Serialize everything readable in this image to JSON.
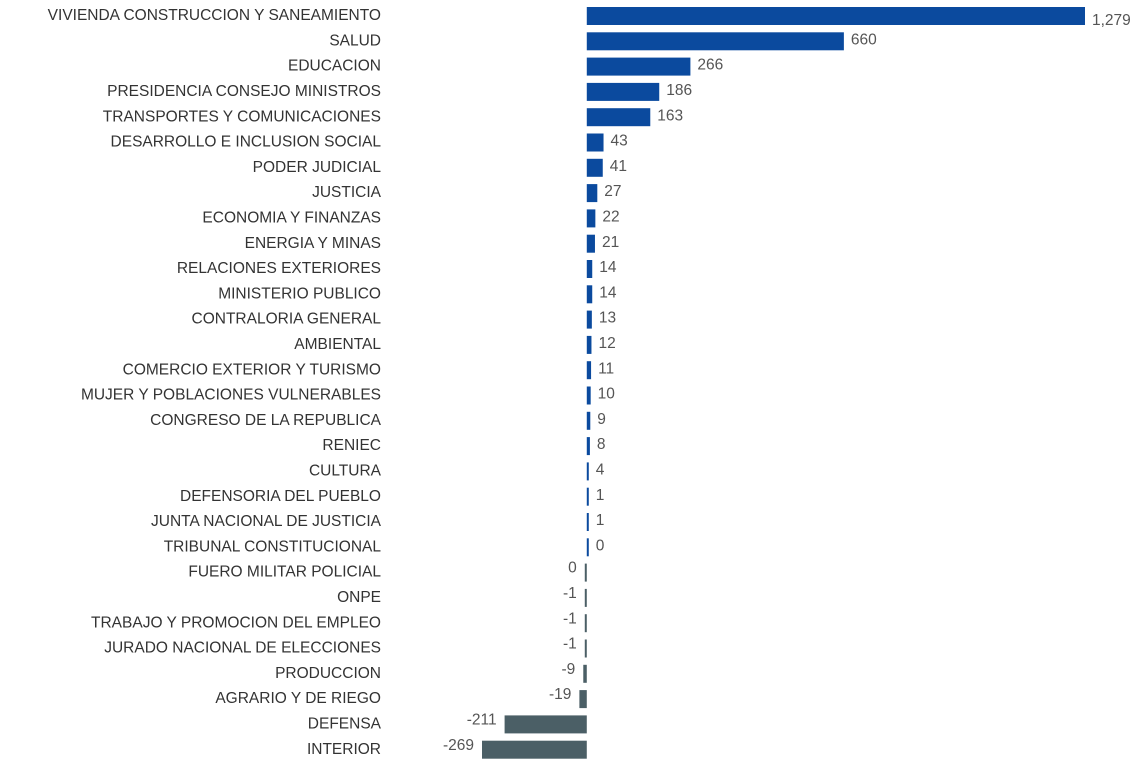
{
  "chart_data": {
    "type": "hbar",
    "categories": [
      "VIVIENDA CONSTRUCCION Y SANEAMIENTO",
      "SALUD",
      "EDUCACION",
      "PRESIDENCIA CONSEJO MINISTROS",
      "TRANSPORTES Y COMUNICACIONES",
      "DESARROLLO E INCLUSION SOCIAL",
      "PODER JUDICIAL",
      "JUSTICIA",
      "ECONOMIA Y FINANZAS",
      "ENERGIA Y MINAS",
      "RELACIONES EXTERIORES",
      "MINISTERIO PUBLICO",
      "CONTRALORIA GENERAL",
      "AMBIENTAL",
      "COMERCIO EXTERIOR Y TURISMO",
      "MUJER Y POBLACIONES VULNERABLES",
      "CONGRESO DE LA REPUBLICA",
      "RENIEC",
      "CULTURA",
      "DEFENSORIA DEL PUEBLO",
      "JUNTA NACIONAL DE JUSTICIA",
      "TRIBUNAL CONSTITUCIONAL",
      "FUERO MILITAR POLICIAL",
      "ONPE",
      "TRABAJO Y PROMOCION DEL EMPLEO",
      "JURADO NACIONAL DE ELECCIONES",
      "PRODUCCION",
      "AGRARIO Y DE RIEGO",
      "DEFENSA",
      "INTERIOR"
    ],
    "values": [
      1279,
      660,
      266,
      186,
      163,
      43,
      41,
      27,
      22,
      21,
      14,
      14,
      13,
      12,
      11,
      10,
      9,
      8,
      4,
      1,
      1,
      0,
      0,
      -1,
      -1,
      -1,
      -9,
      -19,
      -211,
      -269
    ],
    "value_labels": [
      "1,279",
      "660",
      "266",
      "186",
      "163",
      "43",
      "41",
      "27",
      "22",
      "21",
      "14",
      "14",
      "13",
      "12",
      "11",
      "10",
      "9",
      "8",
      "4",
      "1",
      "1",
      "0",
      "0",
      "-1",
      "-1",
      "-1",
      "-9",
      "-19",
      "-211",
      "-269"
    ],
    "colors": [
      "#0b4a9e",
      "#0b4a9e",
      "#0b4a9e",
      "#0b4a9e",
      "#0b4a9e",
      "#0b4a9e",
      "#0b4a9e",
      "#0b4a9e",
      "#0b4a9e",
      "#0b4a9e",
      "#0b4a9e",
      "#0b4a9e",
      "#0b4a9e",
      "#0b4a9e",
      "#0b4a9e",
      "#0b4a9e",
      "#0b4a9e",
      "#0b4a9e",
      "#0b4a9e",
      "#0b4a9e",
      "#0b4a9e",
      "#0b4a9e",
      "#4b5f66",
      "#4b5f66",
      "#4b5f66",
      "#4b5f66",
      "#4b5f66",
      "#4b5f66",
      "#4b5f66",
      "#4b5f66"
    ],
    "xlim": [
      -269,
      1279
    ]
  }
}
